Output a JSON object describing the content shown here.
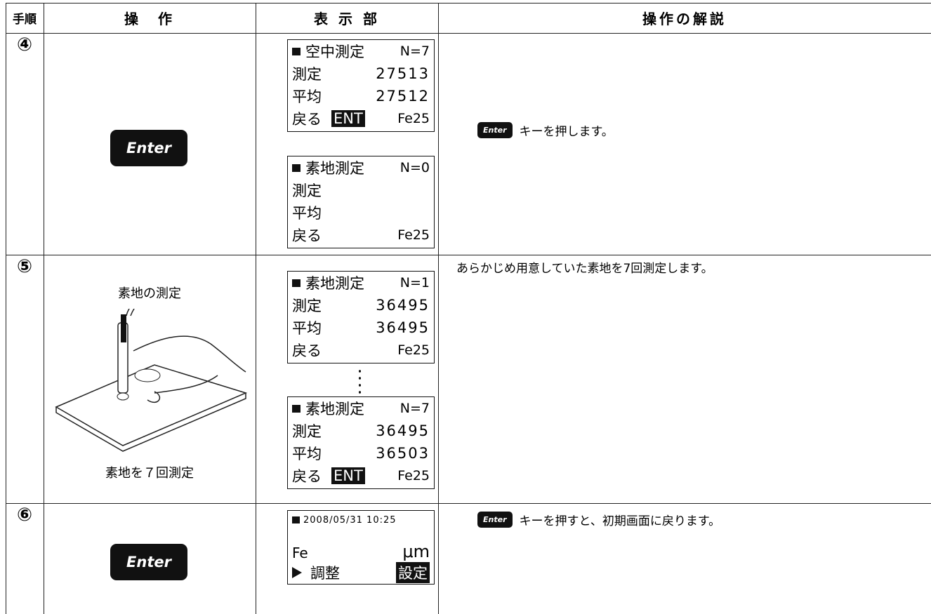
{
  "header": {
    "step": "手順",
    "operation": "操　作",
    "display": "表 示 部",
    "explanation": "操作の解説"
  },
  "rows": [
    {
      "step": "④",
      "operation": {
        "key": "Enter"
      },
      "screens": [
        {
          "title": "空中測定",
          "count": "N=7",
          "lines": [
            {
              "label": "測定",
              "value": "27513"
            },
            {
              "label": "平均",
              "value": "27512"
            }
          ],
          "footer": {
            "back": "戻る",
            "ent": "ENT",
            "code": "Fe25"
          }
        },
        {
          "title": "素地測定",
          "count": "N=0",
          "lines": [
            {
              "label": "測定"
            },
            {
              "label": "平均"
            }
          ],
          "footer": {
            "back": "戻る",
            "code": "Fe25"
          }
        }
      ],
      "explanation": {
        "key": "Enter",
        "text": "キーを押します。"
      }
    },
    {
      "step": "⑤",
      "operation": {
        "caption_top": "素地の測定",
        "caption_bottom": "素地を７回測定"
      },
      "screens": [
        {
          "title": "素地測定",
          "count": "N=1",
          "lines": [
            {
              "label": "測定",
              "value": "36495"
            },
            {
              "label": "平均",
              "value": "36495"
            }
          ],
          "footer": {
            "back": "戻る",
            "code": "Fe25"
          }
        },
        {
          "title": "素地測定",
          "count": "N=7",
          "lines": [
            {
              "label": "測定",
              "value": "36495"
            },
            {
              "label": "平均",
              "value": "36503"
            }
          ],
          "footer": {
            "back": "戻る",
            "ent": "ENT",
            "code": "Fe25"
          }
        }
      ],
      "explanation": {
        "text": "あらかじめ用意していた素地を7回測定します。"
      }
    },
    {
      "step": "⑥",
      "operation": {
        "key": "Enter"
      },
      "screens": [
        {
          "datetime": "2008/05/31 10:25",
          "element": "Fe",
          "unit": "μm",
          "adjust": "調整",
          "settings": "設定"
        }
      ],
      "explanation": {
        "key": "Enter",
        "text": "キーを押すと、初期画面に戻ります。"
      }
    }
  ]
}
